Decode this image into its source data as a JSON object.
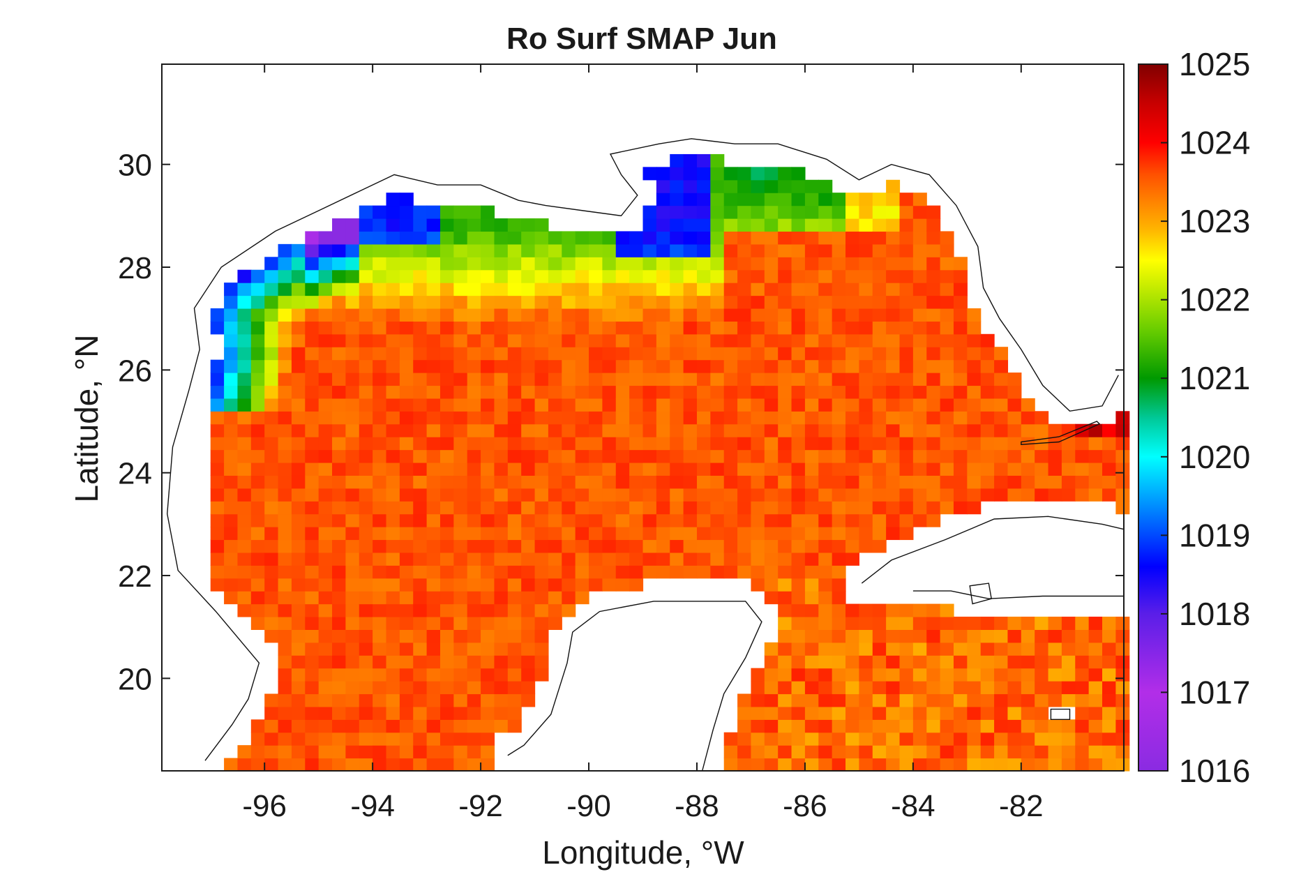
{
  "chart_data": {
    "type": "heatmap",
    "title": "Ro Surf SMAP Jun",
    "xlabel": "Longitude, °W",
    "ylabel": "Latitude, °N",
    "xlim": [
      -97.9,
      -80.1
    ],
    "ylim": [
      18.2,
      31.95
    ],
    "xticks": [
      -96,
      -94,
      -92,
      -90,
      -88,
      -86,
      -84,
      -82
    ],
    "yticks": [
      20,
      22,
      24,
      26,
      28,
      30
    ],
    "xtick_labels": [
      "-96",
      "-94",
      "-92",
      "-90",
      "-88",
      "-86",
      "-84",
      "-82"
    ],
    "ytick_labels": [
      "20",
      "22",
      "24",
      "26",
      "28",
      "30"
    ],
    "colorbar": {
      "min": 1016,
      "max": 1025,
      "ticks": [
        1016,
        1017,
        1018,
        1019,
        1020,
        1021,
        1022,
        1023,
        1024,
        1025
      ],
      "tick_labels": [
        "1016",
        "1017",
        "1018",
        "1019",
        "1020",
        "1021",
        "1022",
        "1023",
        "1024",
        "1025"
      ],
      "colormap": "jet-like: purple to blue to cyan to green to yellow to orange to red to dark red"
    },
    "colormap_stops": [
      {
        "value": 1016.0,
        "color": "#8a2be2"
      },
      {
        "value": 1017.0,
        "color": "#b22ee8"
      },
      {
        "value": 1018.0,
        "color": "#5a1ee8"
      },
      {
        "value": 1018.6,
        "color": "#0000ff"
      },
      {
        "value": 1019.3,
        "color": "#0080ff"
      },
      {
        "value": 1020.0,
        "color": "#00ffff"
      },
      {
        "value": 1020.5,
        "color": "#00c896"
      },
      {
        "value": 1021.0,
        "color": "#009900"
      },
      {
        "value": 1021.6,
        "color": "#66cc00"
      },
      {
        "value": 1022.2,
        "color": "#ccee00"
      },
      {
        "value": 1022.5,
        "color": "#ffff00"
      },
      {
        "value": 1022.9,
        "color": "#ffb400"
      },
      {
        "value": 1023.2,
        "color": "#ff8a00"
      },
      {
        "value": 1023.6,
        "color": "#ff5000"
      },
      {
        "value": 1024.0,
        "color": "#ff0000"
      },
      {
        "value": 1024.5,
        "color": "#c80000"
      },
      {
        "value": 1025.0,
        "color": "#800000"
      }
    ],
    "grid_resolution_deg": 0.25,
    "field_summary": {
      "open_gulf": 1023.5,
      "northern_shelf_plume": [
        1017,
        1022
      ],
      "texas_louisiana_shelf": [
        1016.5,
        1021
      ],
      "caribbean": 1023.5,
      "atlantic_east_of_florida": 1024
    },
    "grid": false,
    "colorbar_location": "right"
  }
}
